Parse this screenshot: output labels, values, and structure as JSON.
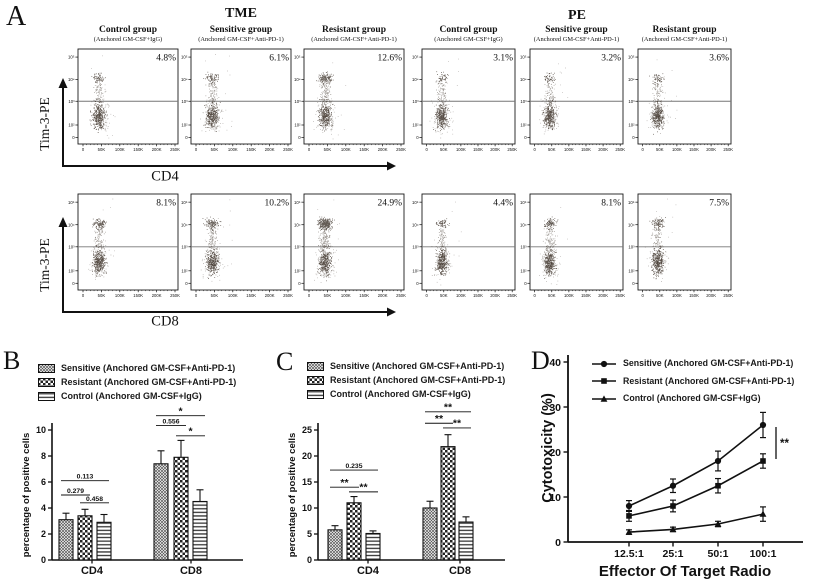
{
  "colors": {
    "ink": "#111111",
    "scatter_dots": "#3f352c",
    "background": "#ffffff",
    "gate_line": "#777777"
  },
  "figure": {
    "panel_a": {
      "label": "A",
      "y_axis_label": "Tim-3-PE",
      "row_axis_labels": [
        "CD4",
        "CD8"
      ],
      "x_tick_labels": [
        "0",
        "50K",
        "100K",
        "150K",
        "200K",
        "250K"
      ],
      "y_tick_labels": [
        "10⁵",
        "10⁴",
        "10³",
        "10²",
        "0"
      ],
      "blocks": [
        {
          "title": "TME",
          "columns": [
            {
              "name": "Control group",
              "subtitle": "(Anchored GM-CSF+IgG)"
            },
            {
              "name": "Sensitive group",
              "subtitle": "(Anchored GM-CSF+Anti-PD-1)"
            },
            {
              "name": "Resistant group",
              "subtitle": "(Anchored GM-CSF+Anti-PD-1)"
            }
          ],
          "rows": [
            {
              "axis": "CD4",
              "pcts": [
                "4.8%",
                "6.1%",
                "12.6%"
              ]
            },
            {
              "axis": "CD8",
              "pcts": [
                "8.1%",
                "10.2%",
                "24.9%"
              ]
            }
          ]
        },
        {
          "title": "PE",
          "columns": [
            {
              "name": "Control group",
              "subtitle": "(Anchored GM-CSF+IgG)"
            },
            {
              "name": "Sensitive group",
              "subtitle": "(Anchored GM-CSF+Anti-PD-1)"
            },
            {
              "name": "Resistant group",
              "subtitle": "(Anchored GM-CSF+Anti-PD-1)"
            }
          ],
          "rows": [
            {
              "axis": "CD4",
              "pcts": [
                "3.1%",
                "3.2%",
                "3.6%"
              ]
            },
            {
              "axis": "CD8",
              "pcts": [
                "4.4%",
                "8.1%",
                "7.5%"
              ]
            }
          ]
        }
      ]
    },
    "panel_b": {
      "label": "B"
    },
    "panel_c": {
      "label": "C"
    },
    "panel_d": {
      "label": "D"
    }
  },
  "chart_data": [
    {
      "panel": "A",
      "type": "scatter",
      "title": "Flow cytometry dot plots, Tim-3-PE vs CD4 / CD8",
      "conditions": [
        "TME",
        "PE"
      ],
      "groups": [
        "Control (Anchored GM-CSF+IgG)",
        "Sensitive (Anchored GM-CSF+Anti-PD-1)",
        "Resistant (Anchored GM-CSF+Anti-PD-1)"
      ],
      "gate_percentages": {
        "TME_CD4": [
          4.8,
          6.1,
          12.6
        ],
        "TME_CD8": [
          8.1,
          10.2,
          24.9
        ],
        "PE_CD4": [
          3.1,
          3.2,
          3.6
        ],
        "PE_CD8": [
          4.4,
          8.1,
          7.5
        ]
      },
      "x_ticks": [
        "0",
        "50K",
        "100K",
        "150K",
        "200K",
        "250K"
      ],
      "y_ticks": [
        "0",
        "10²",
        "10³",
        "10⁴",
        "10⁵"
      ]
    },
    {
      "panel": "B",
      "type": "bar",
      "categories": [
        "CD4",
        "CD8"
      ],
      "series": [
        {
          "name": "Sensitive (Anchored GM-CSF+Anti-PD-1)",
          "pattern": "crosshatch",
          "values": [
            3.1,
            7.4
          ],
          "errors": [
            0.5,
            1.0
          ]
        },
        {
          "name": "Resistant (Anchored GM-CSF+Anti-PD-1)",
          "pattern": "checker",
          "values": [
            3.4,
            7.9
          ],
          "errors": [
            0.5,
            1.3
          ]
        },
        {
          "name": "Control (Anchored GM-CSF+IgG)",
          "pattern": "hlines",
          "values": [
            2.9,
            4.5
          ],
          "errors": [
            0.6,
            0.9
          ]
        }
      ],
      "ylabel": "percentage of positive cells",
      "ylim": [
        0,
        10
      ],
      "yticks": [
        0,
        2,
        4,
        6,
        8,
        10
      ],
      "annotations": [
        {
          "cat": 0,
          "pair": [
            0,
            1
          ],
          "label": "0.279",
          "y": 5.0
        },
        {
          "cat": 0,
          "pair": [
            1,
            2
          ],
          "label": "0.458",
          "y": 4.4
        },
        {
          "cat": 0,
          "pair": [
            0,
            2
          ],
          "label": "0.113",
          "y": 6.1
        },
        {
          "cat": 1,
          "pair": [
            0,
            1
          ],
          "label": "0.556",
          "y": 10.35
        },
        {
          "cat": 1,
          "pair": [
            1,
            2
          ],
          "label": "*",
          "y": 9.55
        },
        {
          "cat": 1,
          "pair": [
            0,
            2
          ],
          "label": "*",
          "y": 11.1
        }
      ]
    },
    {
      "panel": "C",
      "type": "bar",
      "categories": [
        "CD4",
        "CD8"
      ],
      "series": [
        {
          "name": "Sensitive (Anchored GM-CSF+Anti-PD-1)",
          "pattern": "crosshatch",
          "values": [
            5.8,
            10.0
          ],
          "errors": [
            0.8,
            1.3
          ]
        },
        {
          "name": "Resistant (Anchored GM-CSF+Anti-PD-1)",
          "pattern": "checker",
          "values": [
            11.0,
            21.8
          ],
          "errors": [
            1.2,
            2.3
          ]
        },
        {
          "name": "Control (Anchored GM-CSF+IgG)",
          "pattern": "hlines",
          "values": [
            5.1,
            7.3
          ],
          "errors": [
            0.5,
            1.0
          ]
        }
      ],
      "ylabel": "percentage of positive cells",
      "ylim": [
        0,
        25
      ],
      "yticks": [
        0,
        5,
        10,
        15,
        20,
        25
      ],
      "annotations": [
        {
          "cat": 0,
          "pair": [
            0,
            1
          ],
          "label": "**",
          "y": 14.0
        },
        {
          "cat": 0,
          "pair": [
            1,
            2
          ],
          "label": "**",
          "y": 13.1
        },
        {
          "cat": 0,
          "pair": [
            0,
            2
          ],
          "label": "0.235",
          "y": 17.3
        },
        {
          "cat": 1,
          "pair": [
            0,
            1
          ],
          "label": "**",
          "y": 26.3
        },
        {
          "cat": 1,
          "pair": [
            1,
            2
          ],
          "label": "**",
          "y": 25.4
        },
        {
          "cat": 1,
          "pair": [
            0,
            2
          ],
          "label": "**",
          "y": 28.5
        }
      ]
    },
    {
      "panel": "D",
      "type": "line",
      "x_categories": [
        "12.5:1",
        "25:1",
        "50:1",
        "100:1"
      ],
      "series": [
        {
          "name": "Sensitive (Anchored GM-CSF+Anti-PD-1)",
          "marker": "circle",
          "values": [
            8.0,
            12.5,
            18.0,
            26.0
          ],
          "errors": [
            1.2,
            1.5,
            2.2,
            2.8
          ]
        },
        {
          "name": "Resistant (Anchored GM-CSF+Anti-PD-1)",
          "marker": "square",
          "values": [
            5.8,
            8.0,
            12.5,
            18.0
          ],
          "errors": [
            1.2,
            1.3,
            1.6,
            1.6
          ]
        },
        {
          "name": "Control (Anchored GM-CSF+IgG)",
          "marker": "triangle",
          "values": [
            2.2,
            2.8,
            4.0,
            6.2
          ],
          "errors": [
            0.5,
            0.5,
            0.6,
            1.6
          ]
        }
      ],
      "xlabel": "Effector Of Target Radio",
      "ylabel": "Cytotoxicity (%)",
      "ylim": [
        0,
        40
      ],
      "yticks": [
        0,
        10,
        20,
        30,
        40
      ],
      "annotation": {
        "label": "**",
        "at_x": "100:1",
        "between_series": [
          0,
          1
        ]
      }
    }
  ]
}
